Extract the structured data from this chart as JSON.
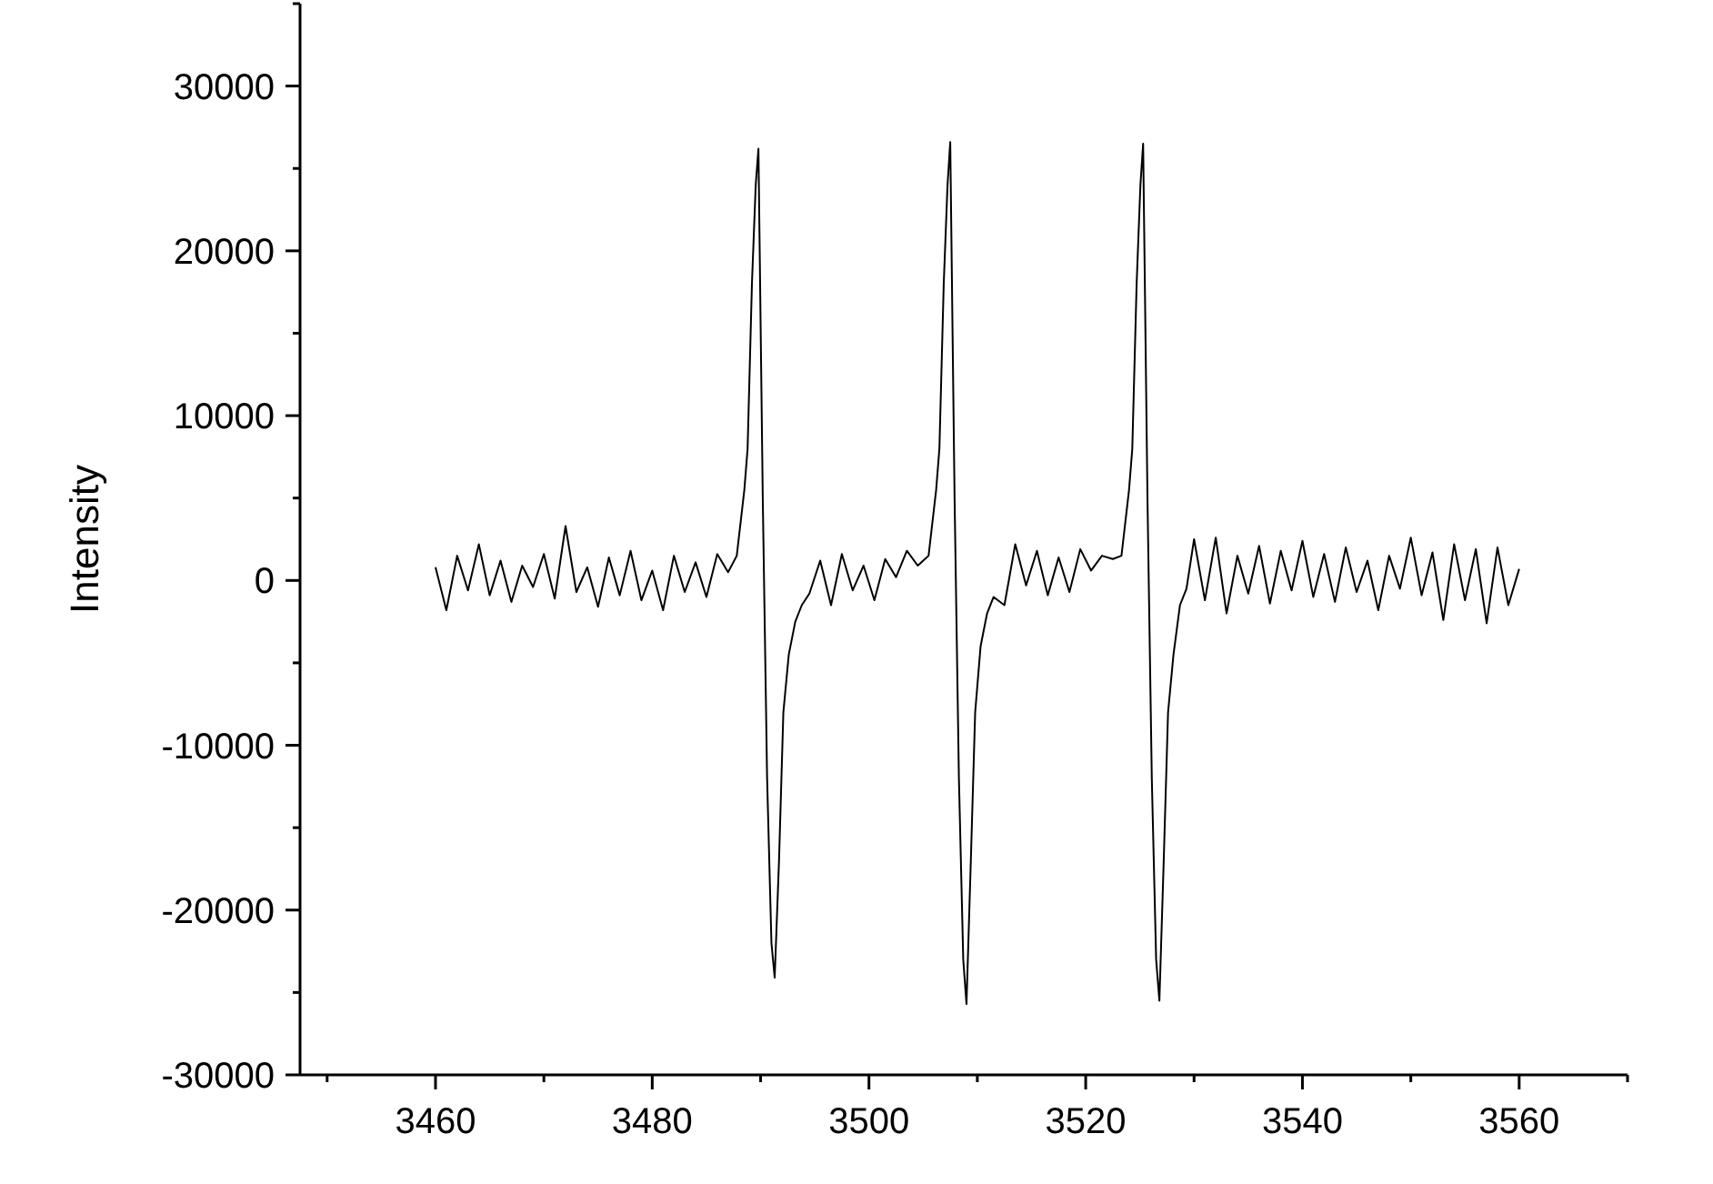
{
  "chart_data": {
    "type": "line",
    "ylabel": "Intensity",
    "xlim": [
      3447.5,
      3570
    ],
    "xticks": [
      {
        "value": 3450,
        "label": null
      },
      3460,
      {
        "value": 3470,
        "label": null
      },
      3480,
      {
        "value": 3490,
        "label": null
      },
      3500,
      {
        "value": 3510,
        "label": null
      },
      3520,
      {
        "value": 3530,
        "label": null
      },
      3540,
      {
        "value": 3550,
        "label": null
      },
      3560,
      {
        "value": 3570,
        "label": null
      }
    ],
    "ylim": [
      -30000,
      35000
    ],
    "yticks": [
      -30000,
      {
        "value": -25000,
        "label": null
      },
      -20000,
      {
        "value": -15000,
        "label": null
      },
      -10000,
      {
        "value": -5000,
        "label": null
      },
      0,
      {
        "value": 5000,
        "label": null
      },
      10000,
      {
        "value": 15000,
        "label": null
      },
      20000,
      {
        "value": 25000,
        "label": null
      },
      30000,
      {
        "value": 35000,
        "label": null
      }
    ],
    "grid": false,
    "marker": "none",
    "line_style": "solid",
    "series": [
      {
        "color": "#000000",
        "x": [
          3460,
          3461,
          3462,
          3463,
          3464,
          3465,
          3466,
          3467,
          3468,
          3469,
          3470,
          3471,
          3472,
          3473,
          3474,
          3475,
          3476,
          3477,
          3478,
          3479,
          3480,
          3481,
          3482,
          3483,
          3484,
          3485,
          3486,
          3487,
          3487.8,
          3488.5,
          3488.8,
          3489.2,
          3489.55,
          3489.8,
          3490.2,
          3490.6,
          3491.0,
          3491.3,
          3491.7,
          3492.1,
          3492.6,
          3493.2,
          3493.8,
          3494.5,
          3495.5,
          3496.5,
          3497.5,
          3498.5,
          3499.5,
          3500.5,
          3501.5,
          3502.5,
          3503.5,
          3504.5,
          3505.5,
          3506.2,
          3506.5,
          3506.9,
          3507.25,
          3507.5,
          3507.9,
          3508.3,
          3508.7,
          3509.0,
          3509.4,
          3509.8,
          3510.3,
          3510.9,
          3511.5,
          3512.5,
          3513.5,
          3514.5,
          3515.5,
          3516.5,
          3517.5,
          3518.5,
          3519.5,
          3520.5,
          3521.5,
          3522.5,
          3523.3,
          3524.0,
          3524.3,
          3524.7,
          3525.05,
          3525.3,
          3525.7,
          3526.1,
          3526.5,
          3526.8,
          3527.2,
          3527.6,
          3528.1,
          3528.7,
          3529.3,
          3530,
          3531,
          3532,
          3533,
          3534,
          3535,
          3536,
          3537,
          3538,
          3539,
          3540,
          3541,
          3542,
          3543,
          3544,
          3545,
          3546,
          3547,
          3548,
          3549,
          3550,
          3551,
          3552,
          3553,
          3554,
          3555,
          3556,
          3557,
          3558,
          3559,
          3560
        ],
        "values": [
          800,
          -1800,
          1500,
          -600,
          2200,
          -900,
          1200,
          -1300,
          900,
          -400,
          1600,
          -1100,
          3300,
          -700,
          800,
          -1600,
          1400,
          -900,
          1800,
          -1200,
          600,
          -1800,
          1500,
          -700,
          1100,
          -1000,
          1600,
          500,
          1500,
          5500,
          8000,
          18000,
          24000,
          26200,
          5000,
          -12000,
          -22000,
          -24100,
          -17000,
          -8000,
          -4500,
          -2500,
          -1500,
          -800,
          1200,
          -1500,
          1600,
          -600,
          900,
          -1200,
          1300,
          200,
          1800,
          900,
          1500,
          5500,
          8000,
          18000,
          24000,
          26600,
          5000,
          -12000,
          -23000,
          -25700,
          -17000,
          -8000,
          -4000,
          -2000,
          -1000,
          -1500,
          2200,
          -300,
          1800,
          -900,
          1400,
          -700,
          1900,
          600,
          1500,
          1300,
          1500,
          5500,
          8000,
          18000,
          24000,
          26500,
          5000,
          -12000,
          -23000,
          -25500,
          -17000,
          -8000,
          -4500,
          -1500,
          -500,
          2500,
          -1200,
          2600,
          -2000,
          1500,
          -800,
          2100,
          -1400,
          1800,
          -600,
          2400,
          -1000,
          1600,
          -1300,
          2000,
          -700,
          1200,
          -1800,
          1500,
          -500,
          2600,
          -900,
          1700,
          -2400,
          2200,
          -1200,
          1900,
          -2600,
          2000,
          -1500,
          700
        ]
      }
    ]
  }
}
